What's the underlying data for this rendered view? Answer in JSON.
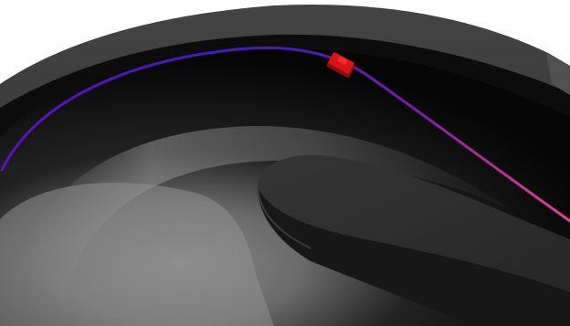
{
  "scene": {
    "background": "#ffffff",
    "track_surface_colors": {
      "outer_wall": "#3a3a3a",
      "bowl_dark": "#0b0b0b",
      "bowl_mid": "#6f6f6f",
      "bowl_light": "#a8a8a8",
      "inner_block_top": "#2d2d2d",
      "inner_block_side": "#1a1a1a"
    },
    "path": {
      "gradient_start": "#3c1ab5",
      "gradient_mid": "#7a1ba8",
      "gradient_end": "#e0438c"
    },
    "marker": {
      "icon": "car-marker-icon",
      "color": "#d81414",
      "shadow": "#8c0b0b"
    }
  }
}
